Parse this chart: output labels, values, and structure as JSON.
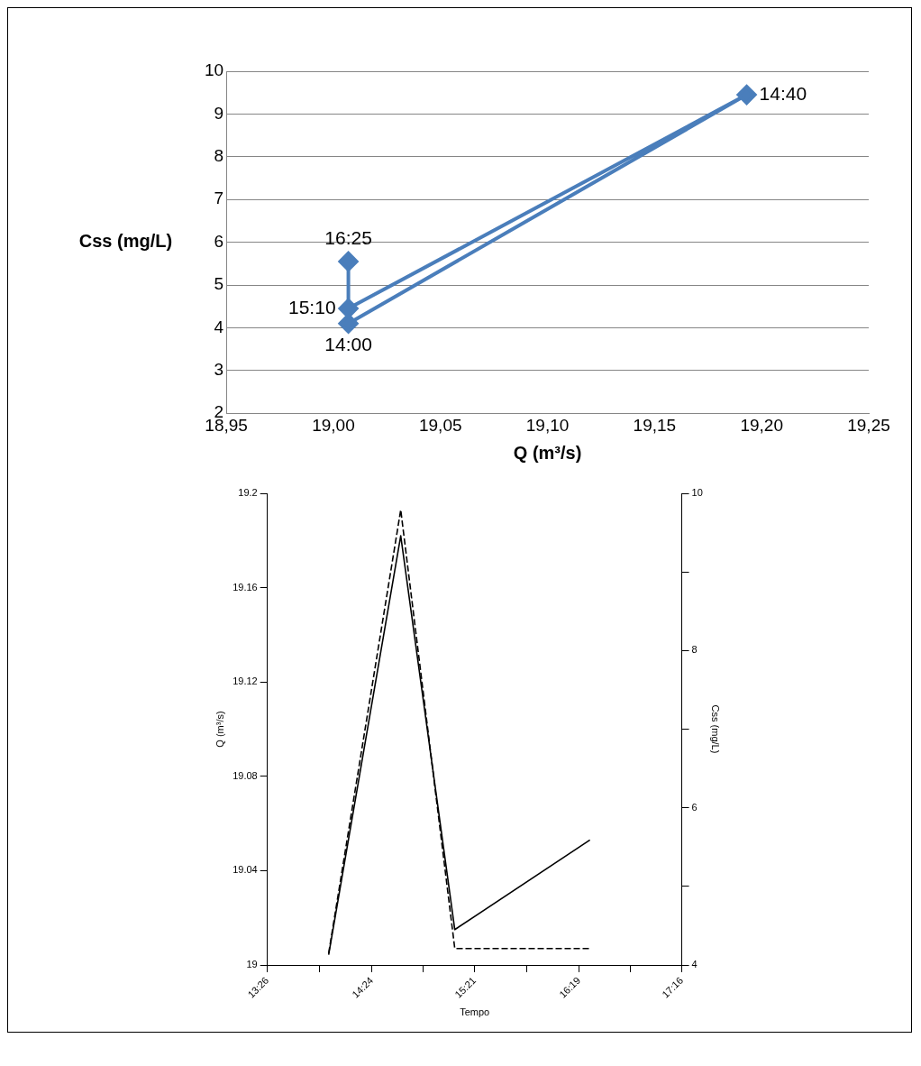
{
  "chart_data": [
    {
      "type": "line",
      "xlabel": "Q (m³/s)",
      "ylabel": "Css (mg/L)",
      "x": [
        19.007,
        19.193,
        19.007,
        19.007
      ],
      "series": [
        {
          "color": "#4a7ebb",
          "values": [
            4.1,
            9.45,
            4.45,
            5.55
          ]
        }
      ],
      "xlim": [
        18.95,
        19.25
      ],
      "xticks": [
        {
          "value": 18.95,
          "label": "18,95"
        },
        {
          "value": 19,
          "label": "19,00"
        },
        {
          "value": 19.05,
          "label": "19,05"
        },
        {
          "value": 19.1,
          "label": "19,10"
        },
        {
          "value": 19.15,
          "label": "19,15"
        },
        {
          "value": 19.2,
          "label": "19,20"
        },
        {
          "value": 19.25,
          "label": "19,25"
        }
      ],
      "ylim": [
        2,
        10
      ],
      "yticks": [
        2,
        3,
        4,
        5,
        6,
        7,
        8,
        9,
        10
      ],
      "grid": "y",
      "legend": false,
      "marker": "diamond",
      "annotations": [
        "14:00",
        "14:40",
        "15:10",
        "16:25"
      ]
    },
    {
      "type": "line",
      "xlabel": "Tempo",
      "ylabel": "Q (m³/s)",
      "y2label": "Css (mg/L)",
      "x": [
        14,
        14.6667,
        15.1667,
        16.4167
      ],
      "series": [
        {
          "color": "#000000",
          "values": [
            19.005,
            19.193,
            19.007,
            19.007
          ],
          "line_style": "dashed"
        },
        {
          "color": "#000000",
          "values": [
            4.13,
            9.46,
            4.45,
            5.59
          ],
          "axis": "y2",
          "line_style": "solid"
        }
      ],
      "xlim": [
        13.4333,
        17.2667
      ],
      "xticks": [
        {
          "value": 13.4333,
          "label": "13:26"
        },
        {
          "value": 13.9167,
          "label": null
        },
        {
          "value": 14.4,
          "label": "14:24"
        },
        {
          "value": 14.875,
          "label": null
        },
        {
          "value": 15.35,
          "label": "15:21"
        },
        {
          "value": 15.8333,
          "label": null
        },
        {
          "value": 16.3167,
          "label": "16:19"
        },
        {
          "value": 16.7917,
          "label": null
        },
        {
          "value": 17.2667,
          "label": "17:16"
        }
      ],
      "ylim": [
        19,
        19.2
      ],
      "yticks": [
        19,
        19.04,
        19.08,
        19.12,
        19.16,
        19.2
      ],
      "y2lim": [
        4,
        10
      ],
      "y2ticks": [
        4,
        {
          "value": 5,
          "label": null
        },
        6,
        {
          "value": 7,
          "label": null
        },
        8,
        {
          "value": 9,
          "label": null
        },
        10
      ],
      "grid": false,
      "legend": false,
      "marker": "none"
    }
  ]
}
